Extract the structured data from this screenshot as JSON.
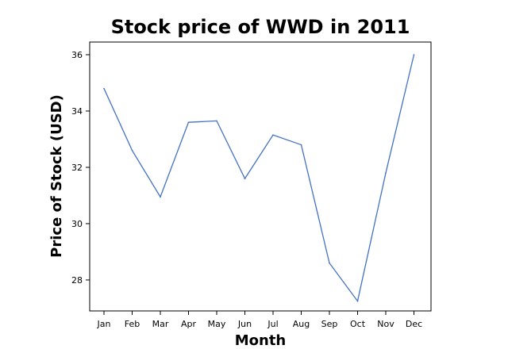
{
  "chart_data": {
    "type": "line",
    "title": "Stock price of WWD in 2011",
    "xlabel": "Month",
    "ylabel": "Price of Stock (USD)",
    "categories": [
      "Jan",
      "Feb",
      "Mar",
      "Apr",
      "May",
      "Jun",
      "Jul",
      "Aug",
      "Sep",
      "Oct",
      "Nov",
      "Dec"
    ],
    "series": [
      {
        "values": [
          34.8,
          32.6,
          30.95,
          33.6,
          33.65,
          31.6,
          33.15,
          32.8,
          28.6,
          27.25,
          31.8,
          36.0
        ],
        "color": "#4472c4"
      }
    ],
    "yticks": [
      28,
      30,
      32,
      34,
      36
    ],
    "ylim": [
      26.9,
      36.45
    ],
    "grid": false,
    "legend": "none"
  }
}
